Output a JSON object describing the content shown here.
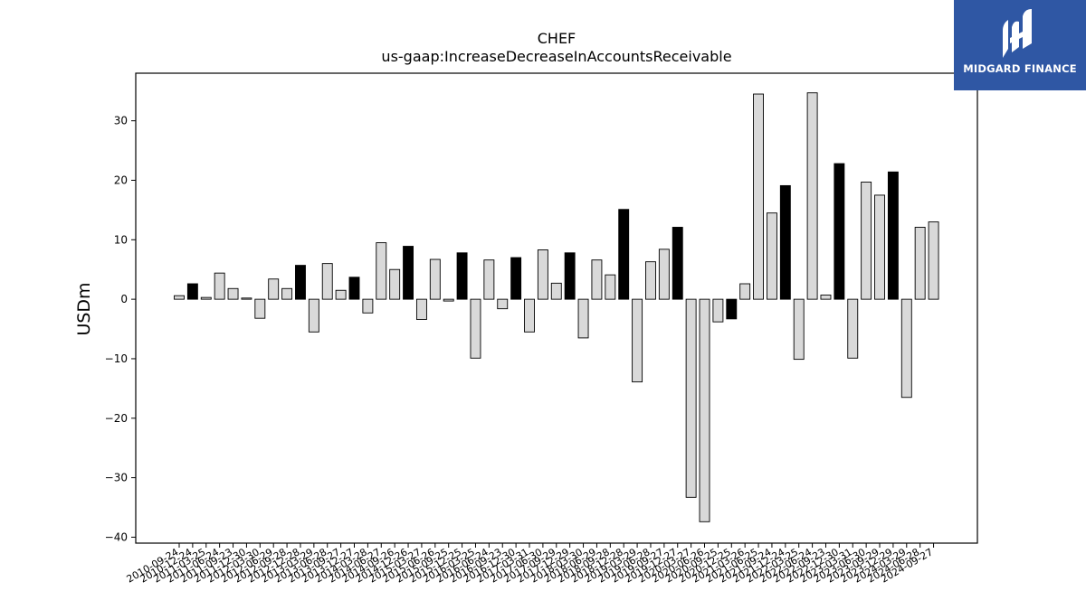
{
  "chart_data": {
    "type": "bar",
    "title": "CHEF",
    "subtitle": "us-gaap:IncreaseDecreaseInAccountsReceivable",
    "ylabel": "USDm",
    "xlabel": "",
    "ylim": [
      -41,
      38
    ],
    "yticks": [
      -40,
      -30,
      -20,
      -10,
      0,
      10,
      20,
      30
    ],
    "ytick_labels": [
      "−40",
      "−30",
      "−20",
      "−10",
      "0",
      "10",
      "20",
      "30"
    ],
    "grid": false,
    "legend": "none",
    "colors": {
      "quarterly": "#d9d9d9",
      "annual": "#000000",
      "edge": "#000000"
    },
    "categories": [
      "2010-09-24",
      "2010-12-24",
      "2011-03-25",
      "2011-06-24",
      "2011-09-23",
      "2011-12-30",
      "2012-03-30",
      "2012-06-29",
      "2012-09-28",
      "2012-12-28",
      "2013-03-29",
      "2013-06-28",
      "2013-09-27",
      "2013-12-27",
      "2014-03-28",
      "2014-06-27",
      "2014-09-26",
      "2014-12-26",
      "2015-03-27",
      "2015-06-26",
      "2015-09-25",
      "2015-12-25",
      "2016-03-25",
      "2016-06-24",
      "2016-09-23",
      "2016-12-30",
      "2017-03-31",
      "2017-06-30",
      "2017-09-29",
      "2017-12-29",
      "2018-03-30",
      "2018-06-29",
      "2018-09-28",
      "2018-12-28",
      "2019-03-29",
      "2019-06-28",
      "2019-09-27",
      "2019-12-27",
      "2020-03-27",
      "2020-06-26",
      "2020-09-25",
      "2020-12-25",
      "2021-03-26",
      "2021-06-25",
      "2021-09-24",
      "2021-12-24",
      "2022-03-25",
      "2022-06-24",
      "2022-09-23",
      "2022-12-30",
      "2023-03-31",
      "2023-06-30",
      "2023-09-29",
      "2023-12-29",
      "2024-03-29",
      "2024-06-28",
      "2024-09-27"
    ],
    "values": [
      0.6,
      2.6,
      0.3,
      4.4,
      1.8,
      0.2,
      -3.2,
      3.4,
      1.8,
      5.7,
      -5.5,
      6.0,
      1.5,
      3.7,
      -2.3,
      9.5,
      5.0,
      8.9,
      -3.4,
      6.7,
      -0.3,
      7.8,
      -9.9,
      6.6,
      -1.6,
      7.0,
      -5.5,
      8.3,
      2.7,
      7.8,
      -6.5,
      6.6,
      4.1,
      15.1,
      -13.9,
      6.3,
      8.4,
      12.1,
      -33.3,
      -37.4,
      -3.8,
      -3.3,
      2.6,
      34.5,
      14.5,
      19.1,
      -10.1,
      34.7,
      0.7,
      22.8,
      -9.9,
      19.7,
      17.5,
      21.4,
      -16.5,
      12.1,
      13.0
    ],
    "annual_flags": [
      0,
      1,
      0,
      0,
      0,
      0,
      0,
      0,
      0,
      1,
      0,
      0,
      0,
      1,
      0,
      0,
      0,
      1,
      0,
      0,
      0,
      1,
      0,
      0,
      0,
      1,
      0,
      0,
      0,
      1,
      0,
      0,
      0,
      1,
      0,
      0,
      0,
      1,
      0,
      0,
      0,
      1,
      0,
      0,
      0,
      1,
      0,
      0,
      0,
      1,
      0,
      0,
      0,
      1,
      0,
      0,
      0
    ]
  },
  "logo": {
    "text": "MIDGARD FINANCE",
    "icon": "midgard-logo-icon",
    "color": "#2f57a4"
  }
}
